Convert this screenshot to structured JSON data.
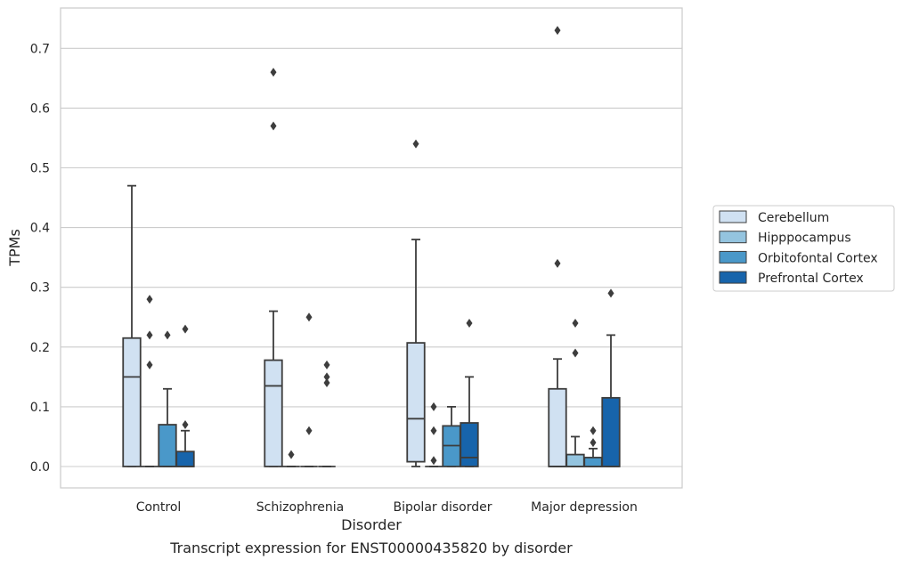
{
  "chart_data": {
    "type": "box",
    "xlabel": "Disorder",
    "ylabel": "TPMs",
    "ylim": [
      -0.035,
      0.77
    ],
    "yticks": [
      0.0,
      0.1,
      0.2,
      0.3,
      0.4,
      0.5,
      0.6,
      0.7
    ],
    "ytick_labels": [
      "0.0",
      "0.1",
      "0.2",
      "0.3",
      "0.4",
      "0.5",
      "0.6",
      "0.7"
    ],
    "grid": true,
    "legend_position": "right",
    "categories": [
      "Control",
      "Schizophrenia",
      "Bipolar disorder",
      "Major depression"
    ],
    "series": [
      {
        "name": "Cerebellum",
        "color": "#d0e1f2",
        "boxes": [
          {
            "whisker_low": 0.0,
            "q1": 0.0,
            "median": 0.15,
            "q3": 0.215,
            "whisker_high": 0.47,
            "outliers": []
          },
          {
            "whisker_low": 0.0,
            "q1": 0.0,
            "median": 0.135,
            "q3": 0.178,
            "whisker_high": 0.26,
            "outliers": [
              0.57,
              0.66
            ]
          },
          {
            "whisker_low": 0.0,
            "q1": 0.008,
            "median": 0.08,
            "q3": 0.207,
            "whisker_high": 0.38,
            "outliers": [
              0.54
            ]
          },
          {
            "whisker_low": 0.0,
            "q1": 0.0,
            "median": 0.0,
            "q3": 0.13,
            "whisker_high": 0.18,
            "outliers": [
              0.34,
              0.73
            ]
          }
        ]
      },
      {
        "name": "Hipppocampus",
        "color": "#94c4df",
        "boxes": [
          {
            "whisker_low": 0.0,
            "q1": 0.0,
            "median": 0.0,
            "q3": 0.0,
            "whisker_high": 0.0,
            "outliers": [
              0.17,
              0.22,
              0.28
            ]
          },
          {
            "whisker_low": 0.0,
            "q1": 0.0,
            "median": 0.0,
            "q3": 0.0,
            "whisker_high": 0.0,
            "outliers": [
              0.02
            ]
          },
          {
            "whisker_low": 0.0,
            "q1": 0.0,
            "median": 0.0,
            "q3": 0.0,
            "whisker_high": 0.0,
            "outliers": [
              0.01,
              0.06,
              0.1
            ]
          },
          {
            "whisker_low": 0.0,
            "q1": 0.0,
            "median": 0.0,
            "q3": 0.02,
            "whisker_high": 0.05,
            "outliers": [
              0.19,
              0.24
            ]
          }
        ]
      },
      {
        "name": "Orbitofontal Cortex",
        "color": "#4a98c9",
        "boxes": [
          {
            "whisker_low": 0.0,
            "q1": 0.0,
            "median": 0.0,
            "q3": 0.07,
            "whisker_high": 0.13,
            "outliers": [
              0.22
            ]
          },
          {
            "whisker_low": 0.0,
            "q1": 0.0,
            "median": 0.0,
            "q3": 0.0,
            "whisker_high": 0.0,
            "outliers": [
              0.06,
              0.25
            ]
          },
          {
            "whisker_low": 0.0,
            "q1": 0.0,
            "median": 0.035,
            "q3": 0.068,
            "whisker_high": 0.1,
            "outliers": []
          },
          {
            "whisker_low": 0.0,
            "q1": 0.0,
            "median": 0.0,
            "q3": 0.015,
            "whisker_high": 0.03,
            "outliers": [
              0.04,
              0.06
            ]
          }
        ]
      },
      {
        "name": "Prefrontal Cortex",
        "color": "#1764ab",
        "boxes": [
          {
            "whisker_low": 0.0,
            "q1": 0.0,
            "median": 0.0,
            "q3": 0.025,
            "whisker_high": 0.06,
            "outliers": [
              0.07,
              0.23
            ]
          },
          {
            "whisker_low": 0.0,
            "q1": 0.0,
            "median": 0.0,
            "q3": 0.0,
            "whisker_high": 0.0,
            "outliers": [
              0.14,
              0.15,
              0.17
            ]
          },
          {
            "whisker_low": 0.0,
            "q1": 0.0,
            "median": 0.015,
            "q3": 0.073,
            "whisker_high": 0.15,
            "outliers": [
              0.24
            ]
          },
          {
            "whisker_low": 0.0,
            "q1": 0.0,
            "median": 0.0,
            "q3": 0.115,
            "whisker_high": 0.22,
            "outliers": [
              0.29
            ]
          }
        ]
      }
    ],
    "caption": "Transcript expression for ENST00000435820 by disorder"
  }
}
